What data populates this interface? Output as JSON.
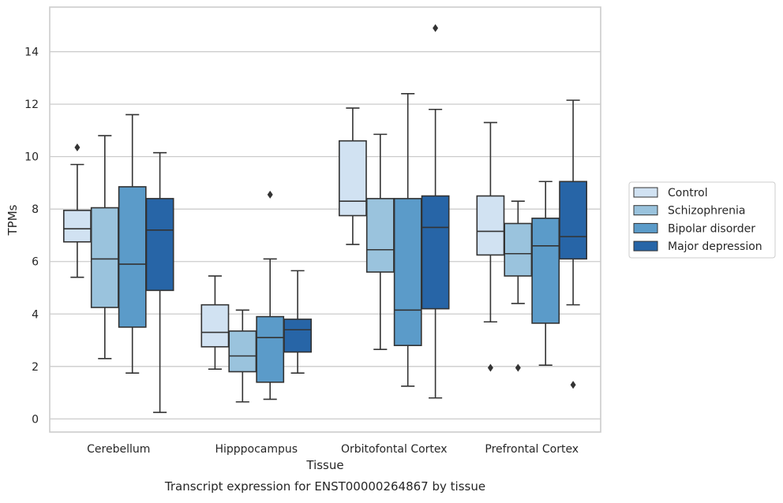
{
  "chart_data": {
    "type": "box",
    "title": "",
    "caption": "Transcript expression for ENST00000264867 by tissue",
    "xlabel": "Tissue",
    "ylabel": "TPMs",
    "ylim": [
      -0.5,
      15.7
    ],
    "yticks": [
      0,
      2,
      4,
      6,
      8,
      10,
      12,
      14
    ],
    "grid": "horizontal",
    "legend_position": "right",
    "categories": [
      "Cerebellum",
      "Hipppocampus",
      "Orbitofontal Cortex",
      "Prefrontal Cortex"
    ],
    "series": [
      {
        "name": "Control",
        "color": "#d1e2f2",
        "boxes": [
          {
            "whislo": 5.4,
            "q1": 6.75,
            "med": 7.25,
            "q3": 7.95,
            "whishi": 9.7,
            "fliers": [
              10.35
            ]
          },
          {
            "whislo": 1.9,
            "q1": 2.75,
            "med": 3.3,
            "q3": 4.35,
            "whishi": 5.45,
            "fliers": []
          },
          {
            "whislo": 6.65,
            "q1": 7.75,
            "med": 8.3,
            "q3": 10.6,
            "whishi": 11.85,
            "fliers": []
          },
          {
            "whislo": 3.7,
            "q1": 6.25,
            "med": 7.15,
            "q3": 8.5,
            "whishi": 11.3,
            "fliers": [
              1.95
            ]
          }
        ]
      },
      {
        "name": "Schizophrenia",
        "color": "#9ac3dd",
        "boxes": [
          {
            "whislo": 2.3,
            "q1": 4.25,
            "med": 6.1,
            "q3": 8.05,
            "whishi": 10.8,
            "fliers": []
          },
          {
            "whislo": 0.65,
            "q1": 1.8,
            "med": 2.4,
            "q3": 3.35,
            "whishi": 4.15,
            "fliers": []
          },
          {
            "whislo": 2.65,
            "q1": 5.6,
            "med": 6.45,
            "q3": 8.4,
            "whishi": 10.85,
            "fliers": []
          },
          {
            "whislo": 4.4,
            "q1": 5.45,
            "med": 6.3,
            "q3": 7.45,
            "whishi": 8.3,
            "fliers": [
              1.95
            ]
          }
        ]
      },
      {
        "name": "Bipolar disorder",
        "color": "#5b9bc9",
        "boxes": [
          {
            "whislo": 1.75,
            "q1": 3.5,
            "med": 5.9,
            "q3": 8.85,
            "whishi": 11.6,
            "fliers": []
          },
          {
            "whislo": 0.75,
            "q1": 1.4,
            "med": 3.1,
            "q3": 3.9,
            "whishi": 6.1,
            "fliers": [
              8.55
            ]
          },
          {
            "whislo": 1.25,
            "q1": 2.8,
            "med": 4.15,
            "q3": 8.4,
            "whishi": 12.4,
            "fliers": []
          },
          {
            "whislo": 2.05,
            "q1": 3.65,
            "med": 6.6,
            "q3": 7.65,
            "whishi": 9.05,
            "fliers": []
          }
        ]
      },
      {
        "name": "Major depression",
        "color": "#2765a7",
        "boxes": [
          {
            "whislo": 0.25,
            "q1": 4.9,
            "med": 7.2,
            "q3": 8.4,
            "whishi": 10.15,
            "fliers": []
          },
          {
            "whislo": 1.75,
            "q1": 2.55,
            "med": 3.4,
            "q3": 3.8,
            "whishi": 5.65,
            "fliers": []
          },
          {
            "whislo": 0.8,
            "q1": 4.2,
            "med": 7.3,
            "q3": 8.5,
            "whishi": 11.8,
            "fliers": [
              14.9
            ]
          },
          {
            "whislo": 4.35,
            "q1": 6.1,
            "med": 6.95,
            "q3": 9.05,
            "whishi": 12.15,
            "fliers": [
              1.3
            ]
          }
        ]
      }
    ]
  }
}
